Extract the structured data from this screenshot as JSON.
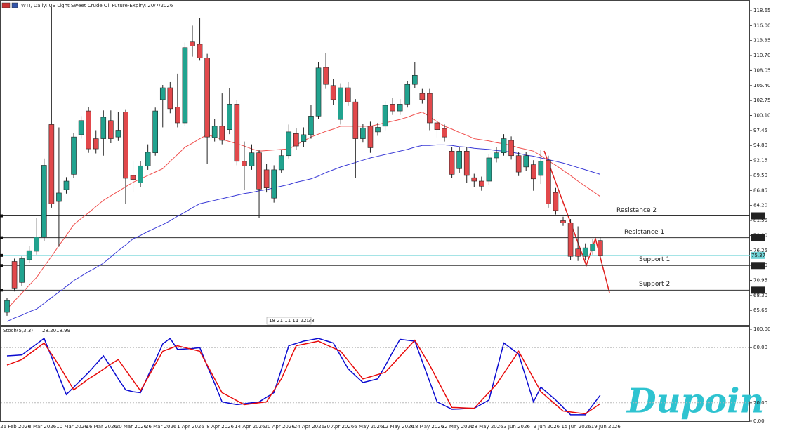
{
  "chart_data": {
    "type": "candlestick",
    "title": "WTI, Daily:  US Light Sweet Crude Oil Future-Expiry: 20/7/2026",
    "timer": "18 21 11 11 22:38",
    "logo": "Dupoin",
    "up_color": "#21a38f",
    "down_color": "#e2484b",
    "categories": [
      "26 Feb 2026",
      null,
      null,
      null,
      "4 Mar 2026",
      null,
      null,
      null,
      "10 Mar 2026",
      null,
      null,
      null,
      "16 Mar 2026",
      null,
      null,
      null,
      "20 Mar 2026",
      null,
      null,
      null,
      "26 Mar 2026",
      null,
      null,
      null,
      "1 Apr 2026",
      null,
      null,
      null,
      "8 Apr 2026",
      null,
      null,
      null,
      "14 Apr 2026",
      null,
      null,
      null,
      "20 Apr 2026",
      null,
      null,
      null,
      "24 Apr 2026",
      null,
      null,
      null,
      "30 Apr 2026",
      null,
      null,
      null,
      "6 May 2026",
      null,
      null,
      null,
      "12 May 2026",
      null,
      null,
      null,
      "18 May 2026",
      null,
      null,
      null,
      "22 May 2026",
      null,
      null,
      null,
      "28 May 2026",
      null,
      null,
      null,
      "3 Jun 2026",
      null,
      null,
      null,
      "9 Jun 2026",
      null,
      null,
      null,
      "15 Jun 2026",
      null,
      null,
      null,
      "19 Jun 2026"
    ],
    "open": [
      65.3,
      74.3,
      70.6,
      74.6,
      76.1,
      78.6,
      98.5,
      84.9,
      87.0,
      89.7,
      96.7,
      100.9,
      96.0,
      96.0,
      99.2,
      96.3,
      100.7,
      89.5,
      88.2,
      91.2,
      93.5,
      102.9,
      105.0,
      101.6,
      98.8,
      113.1,
      112.7,
      110.3,
      96.2,
      98.2,
      97.6,
      102.1,
      92.0,
      91.2,
      93.5,
      90.5,
      85.5,
      90.5,
      93.0,
      96.9,
      95.5,
      96.7,
      100.0,
      108.6,
      105.4,
      99.4,
      105.0,
      102.5,
      96.0,
      98.2,
      97.2,
      98.2,
      102.1,
      100.9,
      102.1,
      105.6,
      104.0,
      104.0,
      98.8,
      97.8,
      93.8,
      90.7,
      93.8,
      89.1,
      88.5,
      88.5,
      92.6,
      93.5,
      95.7,
      93.0,
      91.0,
      91.4,
      89.5,
      92.2,
      86.5,
      81.5,
      81.1,
      76.5,
      75.2,
      76.2,
      78.0
    ],
    "high": [
      67.8,
      74.8,
      75.2,
      77.0,
      82.0,
      92.5,
      119.3,
      98.0,
      89.2,
      97.0,
      100.0,
      101.6,
      97.5,
      101.0,
      101.0,
      100.7,
      101.2,
      92.0,
      92.0,
      95.0,
      101.5,
      105.5,
      106.0,
      107.5,
      113.0,
      116.0,
      117.3,
      111.0,
      99.5,
      104.0,
      105.0,
      102.8,
      95.5,
      95.0,
      94.0,
      91.5,
      91.3,
      94.0,
      98.5,
      97.8,
      98.0,
      102.0,
      109.5,
      111.2,
      106.5,
      105.8,
      106.0,
      103.0,
      98.6,
      99.0,
      98.8,
      102.6,
      103.2,
      103.0,
      106.2,
      109.5,
      104.8,
      104.8,
      99.6,
      98.5,
      94.5,
      94.5,
      94.5,
      89.8,
      89.3,
      93.3,
      94.5,
      96.8,
      96.4,
      93.7,
      93.7,
      92.2,
      94.0,
      93.0,
      87.3,
      82.2,
      81.8,
      80.5,
      77.5,
      78.3,
      78.6
    ],
    "low": [
      64.7,
      69.0,
      70.0,
      74.0,
      75.5,
      77.9,
      83.8,
      76.9,
      86.3,
      89.0,
      96.0,
      93.5,
      93.4,
      93.0,
      95.2,
      95.6,
      84.5,
      86.5,
      87.5,
      90.5,
      93.0,
      98.0,
      100.5,
      98.0,
      98.2,
      110.5,
      109.8,
      91.5,
      95.5,
      95.0,
      96.8,
      91.3,
      87.0,
      90.5,
      82.0,
      86.5,
      84.7,
      90.0,
      92.5,
      94.0,
      94.5,
      96.0,
      99.5,
      104.8,
      102.0,
      98.5,
      101.8,
      89.0,
      95.3,
      93.5,
      96.5,
      97.5,
      100.2,
      100.2,
      101.5,
      105.0,
      102.2,
      97.5,
      96.2,
      95.5,
      89.0,
      90.0,
      88.2,
      87.5,
      86.8,
      87.8,
      91.8,
      93.0,
      92.3,
      89.4,
      90.3,
      86.8,
      88.0,
      83.8,
      82.6,
      80.6,
      74.5,
      74.4,
      74.5,
      75.5,
      75.0
    ],
    "close": [
      67.4,
      69.6,
      74.8,
      76.2,
      78.6,
      91.3,
      84.5,
      86.4,
      88.5,
      96.3,
      99.2,
      94.2,
      94.2,
      99.8,
      96.0,
      97.5,
      89.0,
      88.8,
      91.2,
      93.6,
      100.9,
      105.0,
      101.3,
      98.8,
      112.1,
      112.4,
      110.3,
      96.3,
      98.2,
      95.7,
      102.1,
      92.0,
      91.2,
      93.5,
      87.1,
      87.3,
      90.5,
      93.0,
      97.2,
      94.7,
      96.7,
      100.0,
      108.5,
      105.6,
      102.9,
      105.0,
      102.5,
      96.0,
      97.9,
      94.4,
      98.0,
      101.9,
      100.9,
      102.1,
      105.6,
      107.2,
      102.9,
      98.8,
      97.6,
      96.3,
      89.7,
      93.8,
      89.5,
      88.5,
      87.6,
      92.6,
      93.5,
      96.0,
      93.0,
      90.1,
      93.0,
      88.9,
      92.0,
      84.5,
      83.3,
      81.1,
      75.2,
      75.2,
      76.7,
      77.4,
      75.37
    ],
    "series": [
      {
        "color": "#f0504e",
        "values": [
          65.9,
          67.3,
          68.7,
          70.1,
          71.5,
          73.4,
          75.2,
          77.1,
          78.9,
          80.8,
          81.9,
          82.9,
          84.0,
          85.1,
          85.9,
          86.7,
          87.5,
          88.3,
          88.9,
          89.5,
          90.1,
          90.7,
          92.0,
          93.2,
          94.5,
          95.2,
          96.0,
          96.7,
          96.3,
          95.9,
          95.5,
          95.1,
          94.7,
          94.2,
          93.8,
          93.9,
          94.0,
          94.1,
          94.2,
          94.9,
          95.6,
          96.3,
          96.8,
          97.3,
          97.7,
          98.2,
          98.2,
          98.2,
          98.2,
          98.2,
          98.5,
          98.8,
          99.1,
          99.4,
          99.8,
          100.3,
          100.7,
          99.9,
          99.0,
          98.2,
          97.7,
          97.1,
          96.6,
          96.0,
          95.8,
          95.6,
          95.3,
          95.1,
          94.8,
          94.4,
          94.1,
          93.8,
          93.0,
          92.1,
          91.3,
          90.4,
          89.5,
          88.5,
          87.6,
          86.7,
          85.8
        ]
      },
      {
        "color": "#3a3ad6",
        "values": [
          63.7,
          64.3,
          64.8,
          65.4,
          65.9,
          66.9,
          67.9,
          68.9,
          69.9,
          70.9,
          71.7,
          72.5,
          73.2,
          74.0,
          75.1,
          76.2,
          77.2,
          78.3,
          78.9,
          79.6,
          80.2,
          80.8,
          81.5,
          82.3,
          83.0,
          83.8,
          84.5,
          84.8,
          85.1,
          85.4,
          85.7,
          86.0,
          86.3,
          86.5,
          86.8,
          87.0,
          87.3,
          87.6,
          87.9,
          88.3,
          88.6,
          88.9,
          89.4,
          90.0,
          90.5,
          91.0,
          91.4,
          91.8,
          92.2,
          92.6,
          92.9,
          93.2,
          93.5,
          93.8,
          94.1,
          94.5,
          94.8,
          94.8,
          94.9,
          94.9,
          94.8,
          94.6,
          94.5,
          94.3,
          94.2,
          94.1,
          93.9,
          93.8,
          93.6,
          93.4,
          93.1,
          92.9,
          92.6,
          92.3,
          92.0,
          91.7,
          91.3,
          90.9,
          90.5,
          90.1,
          89.7
        ]
      }
    ],
    "levels": [
      {
        "name": "Resistance 2",
        "value": 82.36,
        "color": "#333333"
      },
      {
        "name": "Resistance 1",
        "value": 78.5,
        "value_label": "78.50",
        "color": "#333333"
      },
      {
        "value": 75.37,
        "color": "#6fd3d6"
      },
      {
        "name": "Support 1",
        "value": 73.58,
        "color": "#333333"
      },
      {
        "name": "Support 2",
        "value": 69.23,
        "color": "#333333"
      }
    ],
    "ylim": [
      63.07,
      120.51
    ],
    "yticks": [
      118.65,
      {
        "value": 116,
        "label": "116.00"
      },
      113.35,
      {
        "value": 110.7,
        "label": "110.70"
      },
      108.05,
      {
        "value": 105.4,
        "label": "105.40"
      },
      102.75,
      {
        "value": 100.1,
        "label": "100.10"
      },
      97.45,
      {
        "value": 94.8,
        "label": "94.80"
      },
      92.15,
      {
        "value": 89.5,
        "label": "89.50"
      },
      86.85,
      {
        "value": 84.2,
        "label": "84.20"
      },
      81.55,
      {
        "value": 78.9,
        "label": "78.90"
      },
      76.25,
      {
        "value": 73.6,
        "label": "73.60"
      },
      70.95,
      {
        "value": 68.3,
        "label": "68.30"
      },
      65.65
    ],
    "lower_pane": {
      "type": "line",
      "title": "Stoch(5,3,3)",
      "ylim": [
        0,
        103.05
      ],
      "yticks": [
        {
          "value": 100,
          "label": "100.00"
        },
        {
          "value": 80,
          "label": "80.00"
        },
        {
          "value": 20,
          "label": "20.00"
        },
        {
          "value": 0,
          "label": "0.00"
        }
      ],
      "levels": [
        80,
        20
      ],
      "series": [
        {
          "color": "#0a0ad0",
          "last_label": "28.20",
          "values": [
            71,
            71.5,
            72,
            78,
            84,
            90,
            70,
            49,
            29,
            37,
            45,
            53,
            62,
            71,
            59,
            46,
            34,
            32,
            31,
            49,
            66,
            84,
            90,
            78,
            78.5,
            79,
            80,
            60,
            41,
            21,
            19.5,
            18,
            19,
            20,
            21,
            26,
            31,
            56,
            82,
            84.5,
            87,
            88.5,
            90,
            87.5,
            85,
            71,
            57,
            49.5,
            42,
            44,
            46,
            60,
            75,
            89,
            88,
            87,
            65,
            43,
            21,
            17,
            13,
            13.3,
            13.7,
            14,
            18.5,
            23,
            54,
            85,
            79,
            73,
            47,
            21,
            37,
            30,
            23,
            15,
            7,
            7,
            7,
            17.6,
            28.2
          ]
        },
        {
          "color": "#e80a0a",
          "last_label": "18.99",
          "values": [
            61,
            64,
            67,
            73,
            79,
            85,
            73,
            61,
            47.5,
            34,
            40,
            46,
            51,
            56.5,
            62,
            67,
            55.7,
            44.3,
            33,
            47.3,
            61.7,
            76,
            79,
            82,
            80,
            78,
            76,
            61,
            46,
            31,
            26.7,
            22.3,
            18,
            19,
            20,
            21,
            33.5,
            46,
            64,
            82,
            83.7,
            85.3,
            87,
            83.3,
            79.7,
            76,
            66,
            56,
            46,
            48.3,
            50.7,
            53,
            61.8,
            70.5,
            79.3,
            88,
            74.5,
            61,
            45.7,
            30.3,
            15,
            14.7,
            14.3,
            14,
            22.7,
            31.3,
            40,
            52,
            64,
            76,
            61.3,
            46.7,
            32,
            25,
            18,
            11,
            10,
            9,
            8,
            13.5,
            18.99
          ]
        }
      ]
    }
  }
}
